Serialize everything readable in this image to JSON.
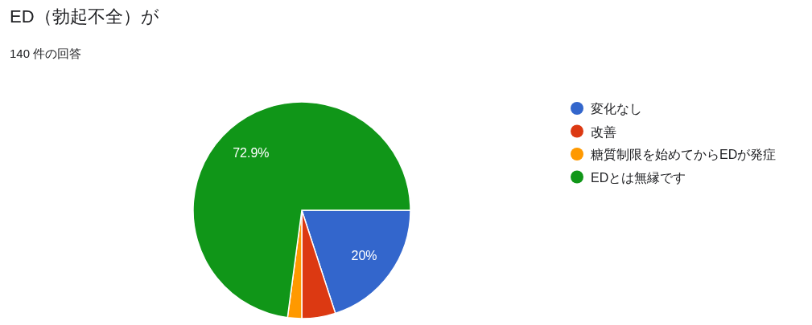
{
  "chart_data": {
    "type": "pie",
    "title": "ED（勃起不全）が",
    "subtitle": "140 件の回答",
    "categories": [
      "変化なし",
      "改善",
      "糖質制限を始めてからEDが発症",
      "EDとは無縁です"
    ],
    "values": [
      20,
      5,
      2.1,
      72.9
    ],
    "colors": [
      "#3366cc",
      "#dc3912",
      "#ff9900",
      "#109618"
    ],
    "value_labels": [
      "20%",
      null,
      null,
      "72.9%"
    ],
    "legend": "right"
  }
}
